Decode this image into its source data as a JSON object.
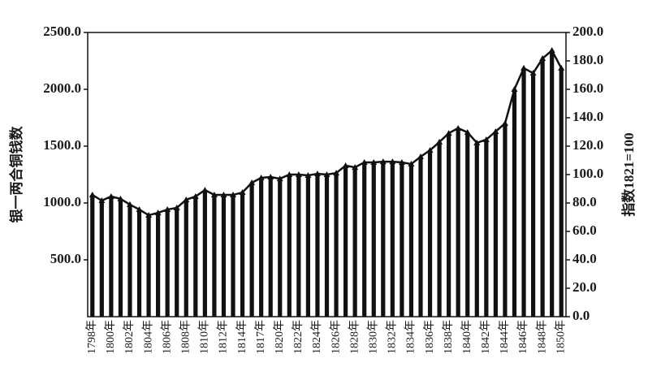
{
  "chart_data": {
    "type": "bar_line",
    "ylabel": "银一两合铜钱数",
    "y2label": "指数1821=100",
    "categories": [
      "1798年",
      null,
      "1800年",
      null,
      "1802年",
      null,
      "1804年",
      null,
      "1806年",
      null,
      "1808年",
      null,
      "1810年",
      null,
      "1812年",
      null,
      "1814年",
      null,
      "1817年",
      null,
      "1820年",
      null,
      "1822年",
      null,
      "1824年",
      null,
      "1826年",
      null,
      "1828年",
      null,
      "1830年",
      null,
      "1832年",
      null,
      "1834年",
      null,
      "1836年",
      null,
      "1838年",
      null,
      "1840年",
      null,
      "1842年",
      null,
      "1844年",
      null,
      "1846年",
      null,
      "1848年",
      null,
      "1850年"
    ],
    "series": [
      {
        "name": "银一两合铜钱数",
        "color": "#111111",
        "type": "bar",
        "values": [
          1071,
          1021,
          1057,
          1036,
          986,
          943,
          893,
          914,
          943,
          957,
          1029,
          1057,
          1114,
          1071,
          1071,
          1071,
          1093,
          1179,
          1221,
          1229,
          1214,
          1250,
          1250,
          1243,
          1257,
          1250,
          1264,
          1329,
          1314,
          1357,
          1357,
          1364,
          1364,
          1357,
          1343,
          1407,
          1464,
          1536,
          1614,
          1657,
          1621,
          1529,
          1557,
          1629,
          1700,
          2000,
          2186,
          2143,
          2271,
          2343,
          2186
        ]
      },
      {
        "name": "指数1821=100",
        "color": "#111111",
        "type": "line",
        "axis": "y2",
        "values": [
          85.7,
          81.7,
          84.6,
          82.9,
          78.9,
          75.4,
          71.4,
          73.1,
          75.4,
          76.6,
          82.3,
          84.6,
          89.1,
          85.7,
          85.7,
          85.7,
          87.4,
          94.3,
          97.7,
          98.3,
          97.1,
          100,
          100,
          99.4,
          100.6,
          100,
          101.1,
          106.3,
          105.1,
          108.6,
          108.6,
          109.1,
          109.1,
          108.6,
          107.4,
          112.6,
          117.1,
          122.9,
          129.1,
          132.6,
          129.7,
          122.3,
          124.6,
          130.3,
          136,
          160,
          174.9,
          171.4,
          181.7,
          187.4,
          174.9
        ]
      }
    ],
    "ylim": [
      0,
      2500
    ],
    "yticks": [
      {
        "value": 500,
        "label": "500.0"
      },
      {
        "value": 1000,
        "label": "1000.0"
      },
      {
        "value": 1500,
        "label": "1500.0"
      },
      {
        "value": 2000,
        "label": "2000.0"
      },
      {
        "value": 2500,
        "label": "2500.0"
      }
    ],
    "y2lim": [
      0,
      200
    ],
    "y2ticks": [
      {
        "value": 0,
        "label": "0.0"
      },
      {
        "value": 20,
        "label": "20.0"
      },
      {
        "value": 40,
        "label": "40.0"
      },
      {
        "value": 60,
        "label": "60.0"
      },
      {
        "value": 80,
        "label": "80.0"
      },
      {
        "value": 100,
        "label": "100.0"
      },
      {
        "value": 120,
        "label": "120.0"
      },
      {
        "value": 140,
        "label": "140.0"
      },
      {
        "value": 160,
        "label": "160.0"
      },
      {
        "value": 180,
        "label": "180.0"
      },
      {
        "value": 200,
        "label": "200.0"
      }
    ]
  }
}
